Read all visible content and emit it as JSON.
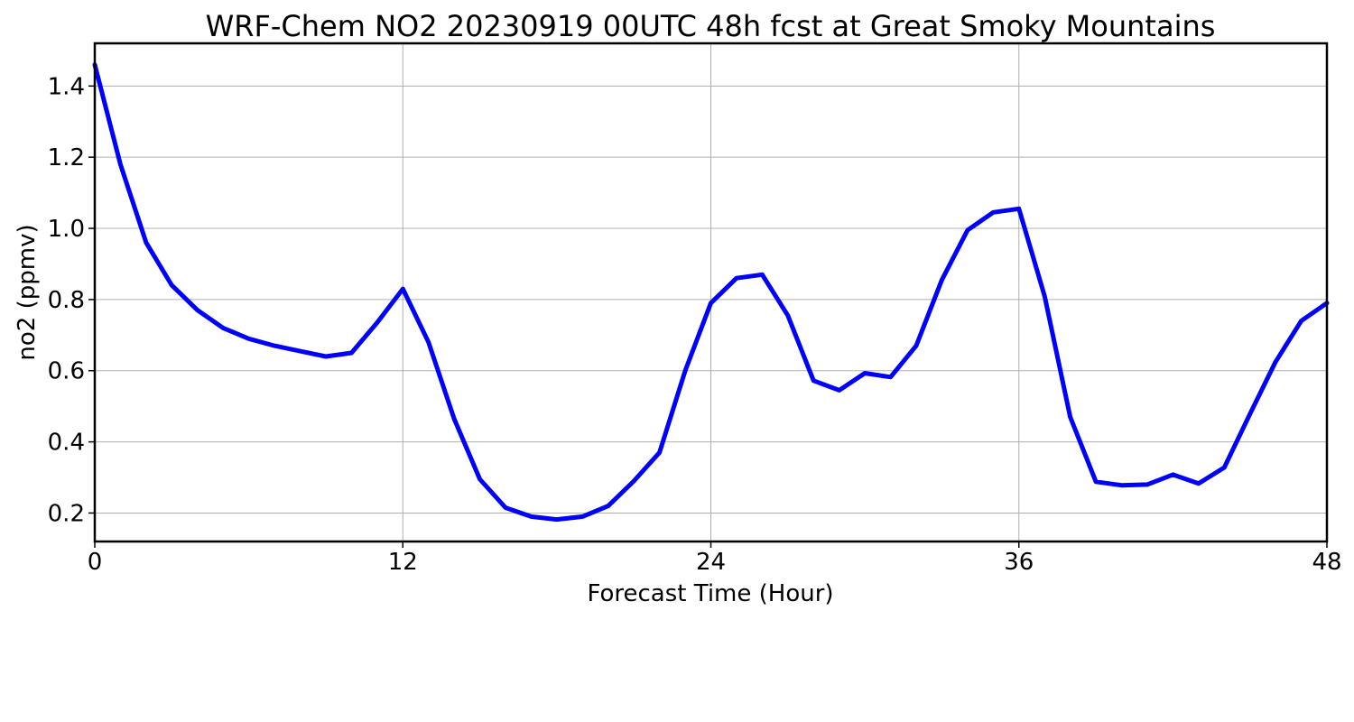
{
  "chart_data": {
    "type": "line",
    "title": "WRF-Chem NO2  20230919 00UTC 48h fcst at Great Smoky Mountains",
    "xlabel": "Forecast Time (Hour)",
    "ylabel": "no2  (ppmv)",
    "xlim": [
      0,
      48
    ],
    "ylim": [
      0.12,
      1.52
    ],
    "xticks": [
      0,
      12,
      24,
      36,
      48
    ],
    "yticks": [
      0.2,
      0.4,
      0.6,
      0.8,
      1.0,
      1.2,
      1.4
    ],
    "ytick_labels": [
      "0.2",
      "0.4",
      "0.6",
      "0.8",
      "1.0",
      "1.2",
      "1.4"
    ],
    "grid": true,
    "series": [
      {
        "color": "#0000ff",
        "x": [
          0,
          1,
          2,
          3,
          4,
          5,
          6,
          7,
          8,
          9,
          10,
          11,
          12,
          13,
          14,
          15,
          16,
          17,
          18,
          19,
          20,
          21,
          22,
          23,
          24,
          25,
          26,
          27,
          28,
          29,
          30,
          31,
          32,
          33,
          34,
          35,
          36,
          37,
          38,
          39,
          40,
          41,
          42,
          43,
          44,
          45,
          46,
          47,
          48
        ],
        "values": [
          1.46,
          1.18,
          0.96,
          0.84,
          0.77,
          0.72,
          0.69,
          0.67,
          0.655,
          0.64,
          0.65,
          0.735,
          0.83,
          0.68,
          0.465,
          0.295,
          0.215,
          0.19,
          0.182,
          0.19,
          0.22,
          0.29,
          0.37,
          0.6,
          0.79,
          0.86,
          0.87,
          0.755,
          0.572,
          0.545,
          0.593,
          0.582,
          0.67,
          0.855,
          0.995,
          1.045,
          1.055,
          0.81,
          0.47,
          0.288,
          0.278,
          0.28,
          0.308,
          0.283,
          0.328,
          0.478,
          0.625,
          0.74,
          0.79
        ]
      }
    ]
  }
}
